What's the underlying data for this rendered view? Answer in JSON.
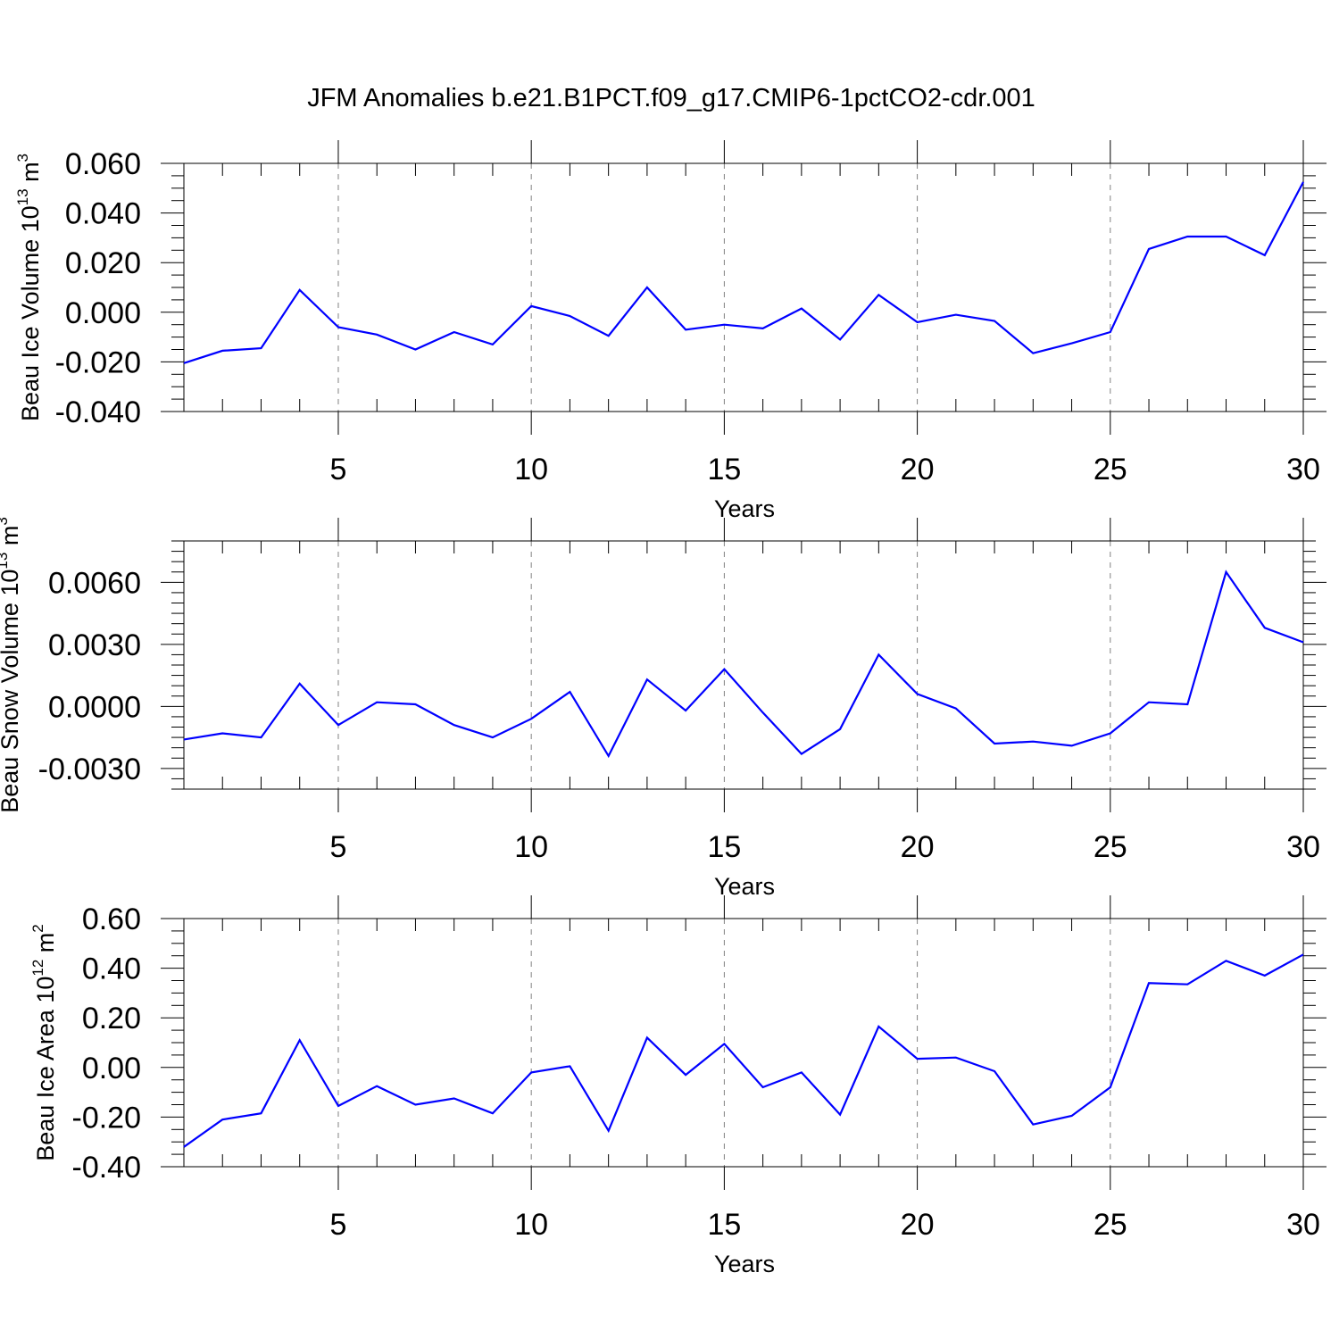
{
  "figure": {
    "title": "JFM Anomalies b.e21.B1PCT.f09_g17.CMIP6-1pctCO2-cdr.001",
    "line_color": "#0000ff"
  },
  "chart_data": [
    {
      "type": "line",
      "xlabel": "Years",
      "ylabel": {
        "text": "Beau Ice Volume 10",
        "exponent": "13",
        "unit": " m",
        "unit_exponent": "3"
      },
      "xlim": [
        1,
        30
      ],
      "ylim": [
        -0.04,
        0.06
      ],
      "xticks": [
        5,
        10,
        15,
        20,
        25,
        30
      ],
      "x_minor_step": 1,
      "yticks": [
        -0.04,
        -0.02,
        0.0,
        0.02,
        0.04,
        0.06
      ],
      "ytick_labels": [
        "-0.040",
        "-0.020",
        "0.000",
        "0.020",
        "0.040",
        "0.060"
      ],
      "y_minor_step": 0.005,
      "grid": "vertical dashed at major x ticks",
      "x": [
        1,
        2,
        3,
        4,
        5,
        6,
        7,
        8,
        9,
        10,
        11,
        12,
        13,
        14,
        15,
        16,
        17,
        18,
        19,
        20,
        21,
        22,
        23,
        24,
        25,
        26,
        27,
        28,
        29,
        30
      ],
      "series": [
        {
          "values": [
            -0.0205,
            -0.0155,
            -0.0145,
            0.009,
            -0.006,
            -0.009,
            -0.015,
            -0.008,
            -0.013,
            0.0025,
            -0.0015,
            -0.0095,
            0.01,
            -0.007,
            -0.005,
            -0.0065,
            0.0015,
            -0.011,
            0.007,
            -0.004,
            -0.001,
            -0.0035,
            -0.0165,
            -0.0125,
            -0.008,
            0.0255,
            0.0305,
            0.0305,
            0.023,
            0.0525
          ]
        }
      ]
    },
    {
      "type": "line",
      "xlabel": "Years",
      "ylabel": {
        "text": "Beau Snow Volume 10",
        "exponent": "13",
        "unit": " m",
        "unit_exponent": "3"
      },
      "xlim": [
        1,
        30
      ],
      "ylim": [
        -0.004,
        0.008
      ],
      "xticks": [
        5,
        10,
        15,
        20,
        25,
        30
      ],
      "x_minor_step": 1,
      "yticks": [
        -0.003,
        0.0,
        0.003,
        0.006
      ],
      "ytick_labels": [
        "-0.0030",
        "0.0000",
        "0.0030",
        "0.0060"
      ],
      "y_minor_step": 0.0005,
      "grid": "vertical dashed at major x ticks",
      "x": [
        1,
        2,
        3,
        4,
        5,
        6,
        7,
        8,
        9,
        10,
        11,
        12,
        13,
        14,
        15,
        16,
        17,
        18,
        19,
        20,
        21,
        22,
        23,
        24,
        25,
        26,
        27,
        28,
        29,
        30
      ],
      "series": [
        {
          "values": [
            -0.0016,
            -0.0013,
            -0.0015,
            0.0011,
            -0.0009,
            0.0002,
            0.0001,
            -0.0009,
            -0.0015,
            -0.0006,
            0.0007,
            -0.0024,
            0.0013,
            -0.0002,
            0.0018,
            -0.0003,
            -0.0023,
            -0.0011,
            0.0025,
            0.0006,
            -0.0001,
            -0.0018,
            -0.0017,
            -0.0019,
            -0.0013,
            0.0002,
            0.0001,
            0.0065,
            0.0038,
            0.0031
          ]
        }
      ]
    },
    {
      "type": "line",
      "xlabel": "Years",
      "ylabel": {
        "text": "Beau Ice Area 10",
        "exponent": "12",
        "unit": " m",
        "unit_exponent": "2"
      },
      "xlim": [
        1,
        30
      ],
      "ylim": [
        -0.4,
        0.6
      ],
      "xticks": [
        5,
        10,
        15,
        20,
        25,
        30
      ],
      "x_minor_step": 1,
      "yticks": [
        -0.4,
        -0.2,
        0.0,
        0.2,
        0.4,
        0.6
      ],
      "ytick_labels": [
        "-0.40",
        "-0.20",
        "0.00",
        "0.20",
        "0.40",
        "0.60"
      ],
      "y_minor_step": 0.05,
      "grid": "vertical dashed at major x ticks",
      "x": [
        1,
        2,
        3,
        4,
        5,
        6,
        7,
        8,
        9,
        10,
        11,
        12,
        13,
        14,
        15,
        16,
        17,
        18,
        19,
        20,
        21,
        22,
        23,
        24,
        25,
        26,
        27,
        28,
        29,
        30
      ],
      "series": [
        {
          "values": [
            -0.32,
            -0.21,
            -0.185,
            0.11,
            -0.155,
            -0.075,
            -0.15,
            -0.125,
            -0.185,
            -0.02,
            0.005,
            -0.255,
            0.12,
            -0.03,
            0.095,
            -0.08,
            -0.02,
            -0.19,
            0.165,
            0.035,
            0.04,
            -0.015,
            -0.23,
            -0.195,
            -0.08,
            0.34,
            0.335,
            0.43,
            0.37,
            0.455
          ]
        }
      ]
    }
  ]
}
